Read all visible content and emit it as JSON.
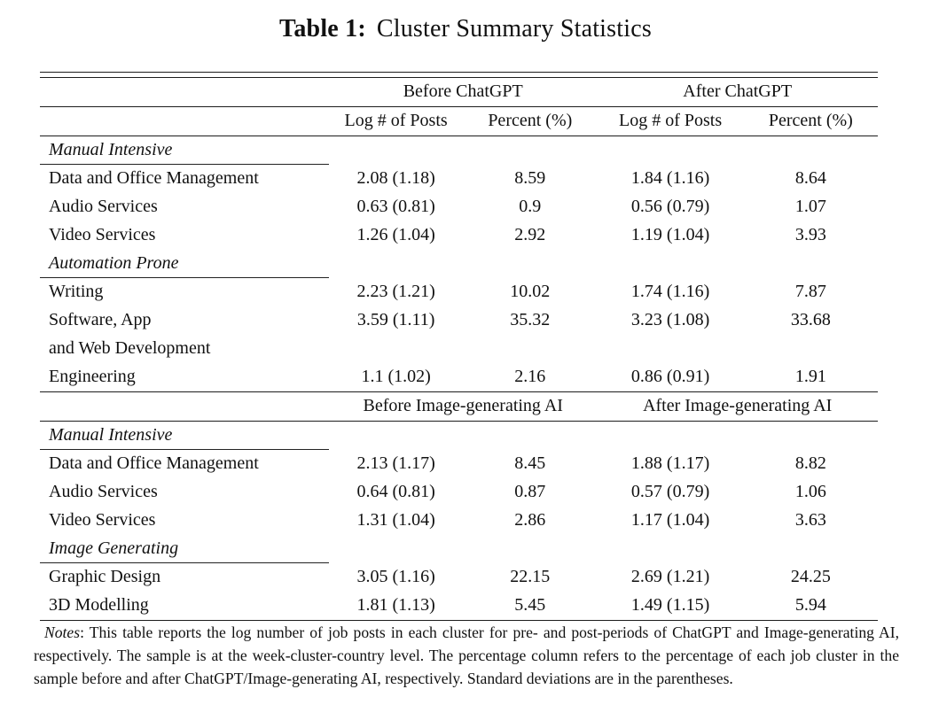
{
  "title": {
    "prefix": "Table 1:",
    "text": "Cluster Summary Statistics"
  },
  "table": {
    "panels": [
      {
        "group_headers": {
          "left": "Before ChatGPT",
          "right": "After ChatGPT"
        },
        "sub_headers": [
          "Log # of Posts",
          "Percent (%)",
          "Log # of Posts",
          "Percent (%)"
        ],
        "sections": [
          {
            "label": "Manual Intensive",
            "rows": [
              {
                "name": "Data and Office Management",
                "values": [
                  "2.08 (1.18)",
                  "8.59",
                  "1.84 (1.16)",
                  "8.64"
                ]
              },
              {
                "name": "Audio Services",
                "values": [
                  "0.63 (0.81)",
                  "0.9",
                  "0.56 (0.79)",
                  "1.07"
                ]
              },
              {
                "name": "Video Services",
                "values": [
                  "1.26 (1.04)",
                  "2.92",
                  "1.19 (1.04)",
                  "3.93"
                ]
              }
            ]
          },
          {
            "label": "Automation Prone",
            "rows": [
              {
                "name": "Writing",
                "values": [
                  "2.23 (1.21)",
                  "10.02",
                  "1.74 (1.16)",
                  "7.87"
                ]
              },
              {
                "name": "Software, App",
                "values": [
                  "3.59 (1.11)",
                  "35.32",
                  "3.23 (1.08)",
                  "33.68"
                ]
              },
              {
                "name": "and Web Development",
                "values": [
                  "",
                  "",
                  "",
                  ""
                ]
              },
              {
                "name": "Engineering",
                "values": [
                  "1.1 (1.02)",
                  "2.16",
                  "0.86 (0.91)",
                  "1.91"
                ]
              }
            ]
          }
        ]
      },
      {
        "group_headers": {
          "left": "Before Image-generating AI",
          "right": "After Image-generating AI"
        },
        "sections": [
          {
            "label": "Manual Intensive",
            "rows": [
              {
                "name": "Data and Office Management",
                "values": [
                  "2.13 (1.17)",
                  "8.45",
                  "1.88 (1.17)",
                  "8.82"
                ]
              },
              {
                "name": "Audio Services",
                "values": [
                  "0.64 (0.81)",
                  "0.87",
                  "0.57 (0.79)",
                  "1.06"
                ]
              },
              {
                "name": "Video Services",
                "values": [
                  "1.31 (1.04)",
                  "2.86",
                  "1.17 (1.04)",
                  "3.63"
                ]
              }
            ]
          },
          {
            "label": "Image Generating",
            "rows": [
              {
                "name": "Graphic Design",
                "values": [
                  "3.05 (1.16)",
                  "22.15",
                  "2.69 (1.21)",
                  "24.25"
                ]
              },
              {
                "name": "3D Modelling",
                "values": [
                  "1.81 (1.13)",
                  "5.45",
                  "1.49 (1.15)",
                  "5.94"
                ]
              }
            ]
          }
        ]
      }
    ]
  },
  "notes": {
    "label": "Notes",
    "text": ": This table reports the log number of job posts in each cluster for pre- and post-periods of ChatGPT and Image-generating AI, respectively. The sample is at the week-cluster-country level. The percentage column refers to the percentage of each job cluster in the sample before and after ChatGPT/Image-generating AI, respectively. Standard deviations are in the parentheses."
  }
}
